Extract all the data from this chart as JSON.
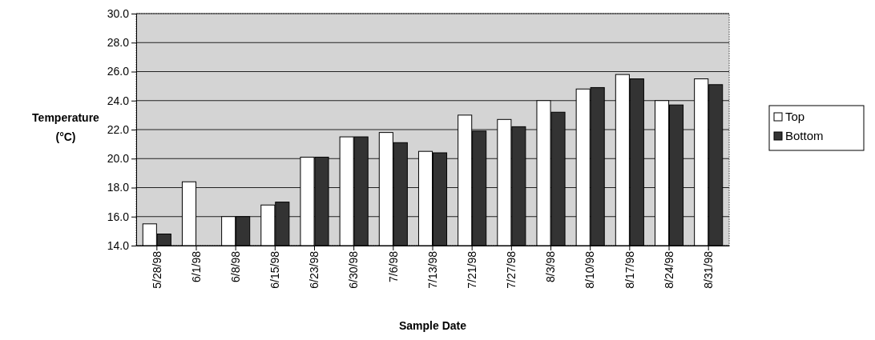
{
  "chart_data": {
    "type": "bar",
    "xlabel": "Sample Date",
    "ylabel": "Temperature (°C)",
    "categories": [
      "5/28/98",
      "6/1/98",
      "6/8/98",
      "6/15/98",
      "6/23/98",
      "6/30/98",
      "7/6/98",
      "7/13/98",
      "7/21/98",
      "7/27/98",
      "8/3/98",
      "8/10/98",
      "8/17/98",
      "8/24/98",
      "8/31/98"
    ],
    "series": [
      {
        "name": "Top",
        "color": "#ffffff",
        "values": [
          15.5,
          18.4,
          16.0,
          16.8,
          20.1,
          21.5,
          21.8,
          20.5,
          23.0,
          22.7,
          24.0,
          24.8,
          25.8,
          24.0,
          25.5
        ]
      },
      {
        "name": "Bottom",
        "color": "#333333",
        "values": [
          14.8,
          null,
          16.0,
          17.0,
          20.1,
          21.5,
          21.1,
          20.4,
          21.9,
          22.2,
          23.2,
          24.9,
          25.5,
          23.7,
          25.1
        ]
      }
    ],
    "ylim": [
      14,
      30
    ],
    "yticks": [
      {
        "value": 14,
        "label": "14.0"
      },
      {
        "value": 16,
        "label": "16.0"
      },
      {
        "value": 18,
        "label": "18.0"
      },
      {
        "value": 20,
        "label": "20.0"
      },
      {
        "value": 22,
        "label": "22.0"
      },
      {
        "value": 24,
        "label": "24.0"
      },
      {
        "value": 26,
        "label": "26.0"
      },
      {
        "value": 28,
        "label": "28.0"
      },
      {
        "value": 30,
        "label": "30.0"
      }
    ],
    "grid": "y",
    "legend": "right"
  }
}
